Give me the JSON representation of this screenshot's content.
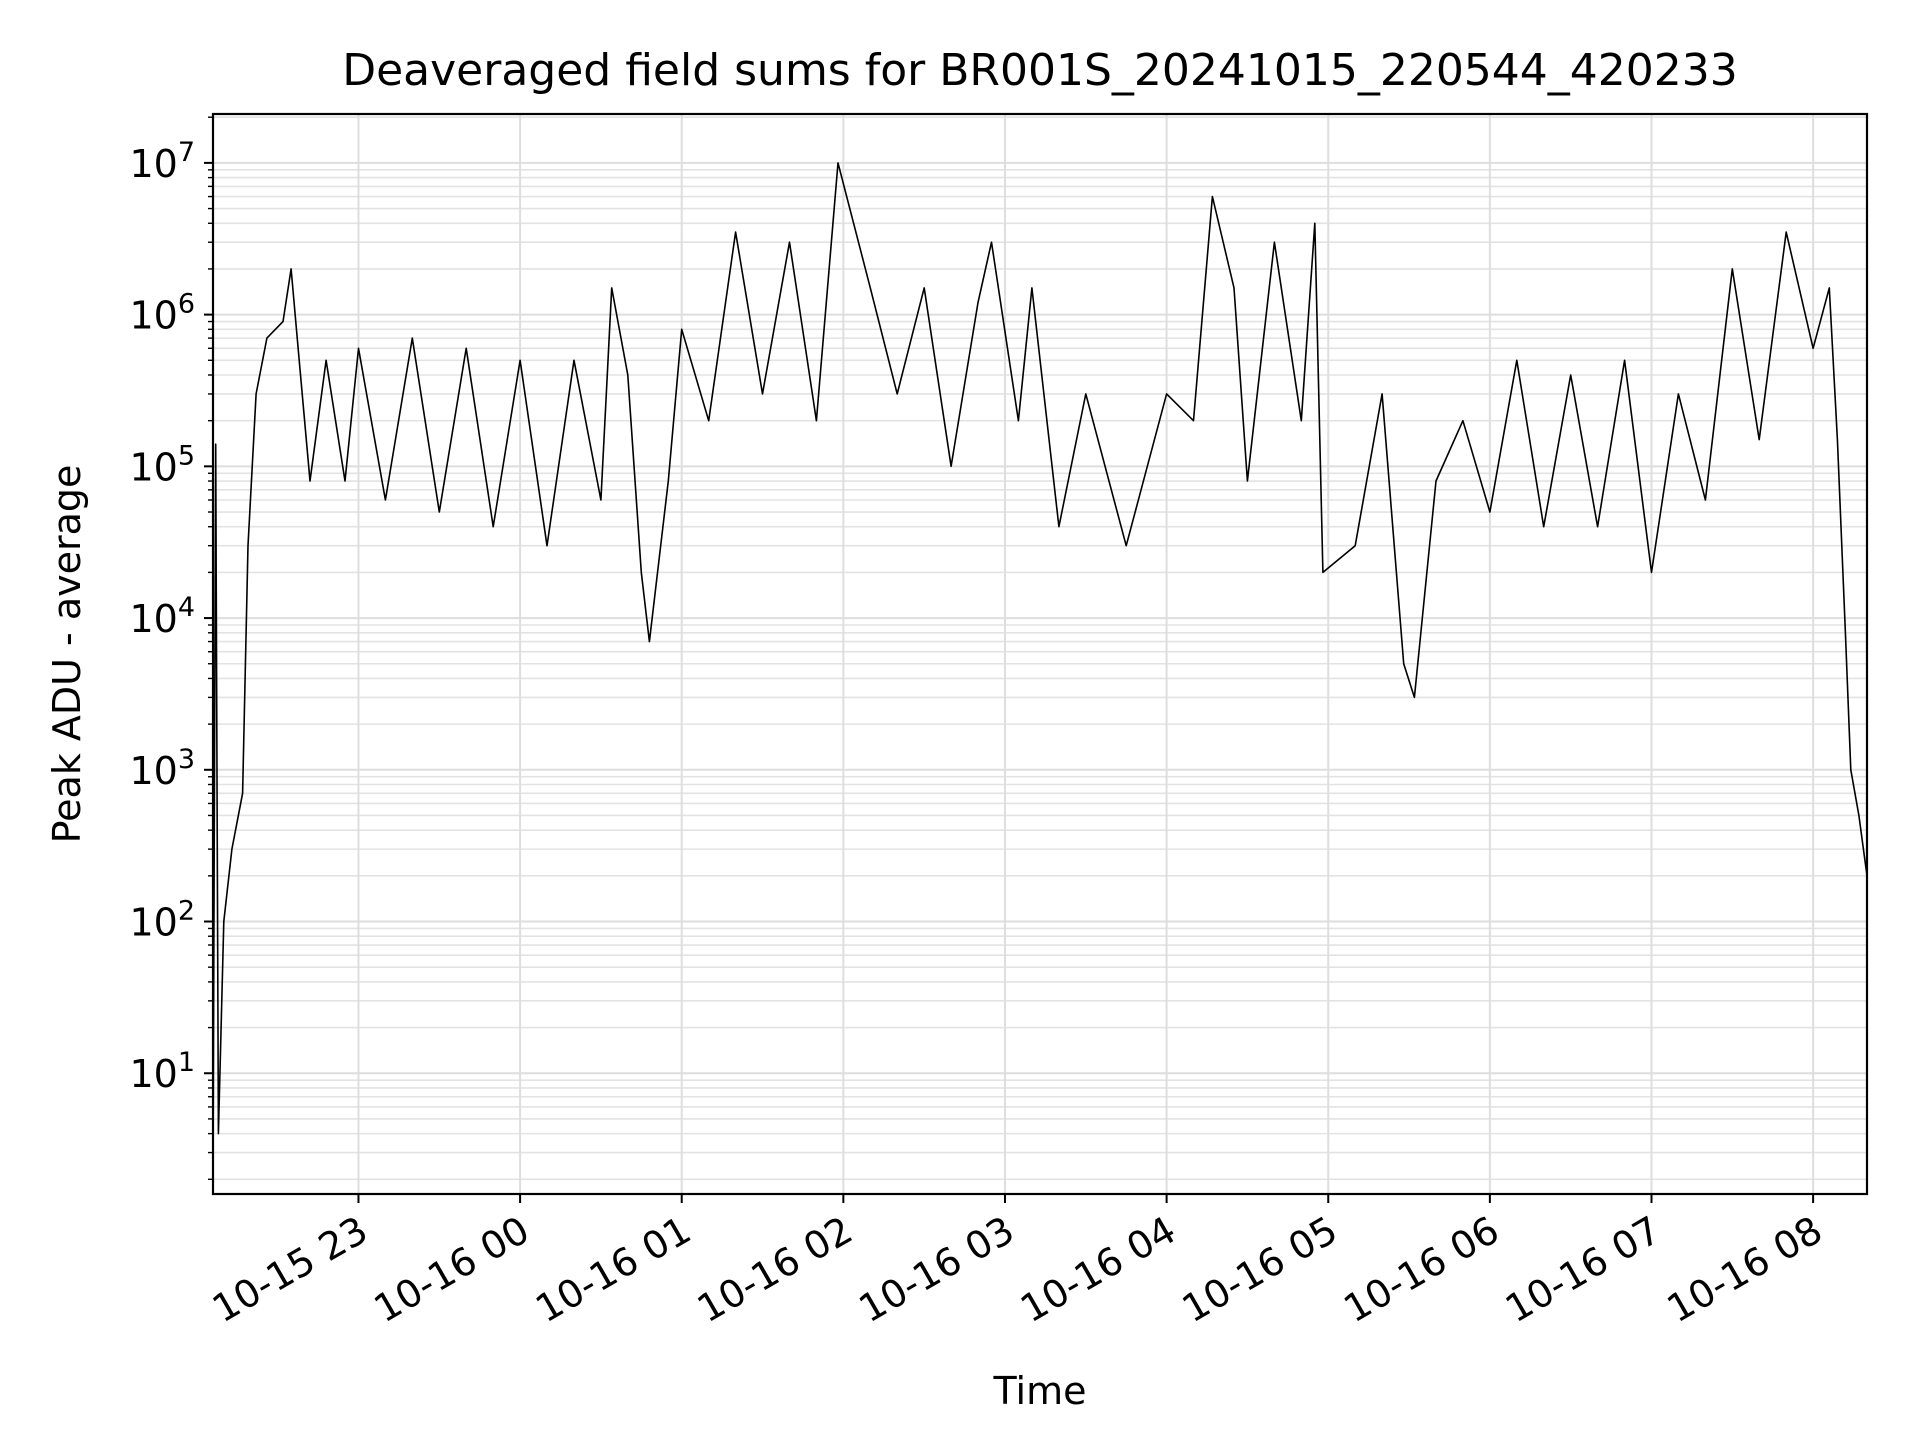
{
  "chart_data": {
    "type": "line",
    "title": "Deaveraged field sums for BR001S_20241015_220544_420233",
    "xlabel": "Time",
    "ylabel": "Peak ADU - average",
    "yscale": "log",
    "ylim": [
      1.6,
      21000000
    ],
    "xlim": [
      "2024-10-15 22:06",
      "2024-10-16 08:20"
    ],
    "grid": "major and minor",
    "legend": "none",
    "line_color": "#000000",
    "x_ticks": [
      {
        "x": "2024-10-15 23:00",
        "label": "10-15 23"
      },
      {
        "x": "2024-10-16 00:00",
        "label": "10-16 00"
      },
      {
        "x": "2024-10-16 01:00",
        "label": "10-16 01"
      },
      {
        "x": "2024-10-16 02:00",
        "label": "10-16 02"
      },
      {
        "x": "2024-10-16 03:00",
        "label": "10-16 03"
      },
      {
        "x": "2024-10-16 04:00",
        "label": "10-16 04"
      },
      {
        "x": "2024-10-16 05:00",
        "label": "10-16 05"
      },
      {
        "x": "2024-10-16 06:00",
        "label": "10-16 06"
      },
      {
        "x": "2024-10-16 07:00",
        "label": "10-16 07"
      },
      {
        "x": "2024-10-16 08:00",
        "label": "10-16 08"
      }
    ],
    "y_ticks": [
      {
        "value": 10,
        "base": "10",
        "exp": "1"
      },
      {
        "value": 100,
        "base": "10",
        "exp": "2"
      },
      {
        "value": 1000,
        "base": "10",
        "exp": "3"
      },
      {
        "value": 10000,
        "base": "10",
        "exp": "4"
      },
      {
        "value": 100000,
        "base": "10",
        "exp": "5"
      },
      {
        "value": 1000000,
        "base": "10",
        "exp": "6"
      },
      {
        "value": 10000000,
        "base": "10",
        "exp": "7"
      }
    ],
    "series": [
      {
        "points": [
          [
            "2024-10-15 22:06",
            2
          ],
          [
            "2024-10-15 22:07",
            140000
          ],
          [
            "2024-10-15 22:08",
            4
          ],
          [
            "2024-10-15 22:10",
            100
          ],
          [
            "2024-10-15 22:13",
            300
          ],
          [
            "2024-10-15 22:17",
            700
          ],
          [
            "2024-10-15 22:19",
            30000
          ],
          [
            "2024-10-15 22:22",
            300000
          ],
          [
            "2024-10-15 22:26",
            700000
          ],
          [
            "2024-10-15 22:32",
            900000
          ],
          [
            "2024-10-15 22:35",
            2000000
          ],
          [
            "2024-10-15 22:38",
            500000
          ],
          [
            "2024-10-15 22:42",
            80000
          ],
          [
            "2024-10-15 22:48",
            500000
          ],
          [
            "2024-10-15 22:55",
            80000
          ],
          [
            "2024-10-15 23:00",
            600000
          ],
          [
            "2024-10-15 23:10",
            60000
          ],
          [
            "2024-10-15 23:20",
            700000
          ],
          [
            "2024-10-15 23:30",
            50000
          ],
          [
            "2024-10-15 23:40",
            600000
          ],
          [
            "2024-10-15 23:50",
            40000
          ],
          [
            "2024-10-16 00:00",
            500000
          ],
          [
            "2024-10-16 00:10",
            30000
          ],
          [
            "2024-10-16 00:20",
            500000
          ],
          [
            "2024-10-16 00:30",
            60000
          ],
          [
            "2024-10-16 00:34",
            1500000
          ],
          [
            "2024-10-16 00:40",
            400000
          ],
          [
            "2024-10-16 00:45",
            20000
          ],
          [
            "2024-10-16 00:48",
            7000
          ],
          [
            "2024-10-16 00:55",
            80000
          ],
          [
            "2024-10-16 01:00",
            800000
          ],
          [
            "2024-10-16 01:10",
            200000
          ],
          [
            "2024-10-16 01:20",
            3500000
          ],
          [
            "2024-10-16 01:30",
            300000
          ],
          [
            "2024-10-16 01:40",
            3000000
          ],
          [
            "2024-10-16 01:50",
            200000
          ],
          [
            "2024-10-16 01:58",
            10000000
          ],
          [
            "2024-10-16 02:10",
            1500000
          ],
          [
            "2024-10-16 02:20",
            300000
          ],
          [
            "2024-10-16 02:30",
            1500000
          ],
          [
            "2024-10-16 02:40",
            100000
          ],
          [
            "2024-10-16 02:50",
            1200000
          ],
          [
            "2024-10-16 02:55",
            3000000
          ],
          [
            "2024-10-16 03:05",
            200000
          ],
          [
            "2024-10-16 03:10",
            1500000
          ],
          [
            "2024-10-16 03:20",
            40000
          ],
          [
            "2024-10-16 03:30",
            300000
          ],
          [
            "2024-10-16 03:45",
            30000
          ],
          [
            "2024-10-16 04:00",
            300000
          ],
          [
            "2024-10-16 04:10",
            200000
          ],
          [
            "2024-10-16 04:17",
            6000000
          ],
          [
            "2024-10-16 04:25",
            1500000
          ],
          [
            "2024-10-16 04:30",
            80000
          ],
          [
            "2024-10-16 04:40",
            3000000
          ],
          [
            "2024-10-16 04:50",
            200000
          ],
          [
            "2024-10-16 04:55",
            4000000
          ],
          [
            "2024-10-16 04:58",
            20000
          ],
          [
            "2024-10-16 05:10",
            30000
          ],
          [
            "2024-10-16 05:20",
            300000
          ],
          [
            "2024-10-16 05:28",
            5000
          ],
          [
            "2024-10-16 05:32",
            3000
          ],
          [
            "2024-10-16 05:40",
            80000
          ],
          [
            "2024-10-16 05:50",
            200000
          ],
          [
            "2024-10-16 06:00",
            50000
          ],
          [
            "2024-10-16 06:10",
            500000
          ],
          [
            "2024-10-16 06:20",
            40000
          ],
          [
            "2024-10-16 06:30",
            400000
          ],
          [
            "2024-10-16 06:40",
            40000
          ],
          [
            "2024-10-16 06:50",
            500000
          ],
          [
            "2024-10-16 07:00",
            20000
          ],
          [
            "2024-10-16 07:10",
            300000
          ],
          [
            "2024-10-16 07:20",
            60000
          ],
          [
            "2024-10-16 07:30",
            2000000
          ],
          [
            "2024-10-16 07:40",
            150000
          ],
          [
            "2024-10-16 07:50",
            3500000
          ],
          [
            "2024-10-16 08:00",
            600000
          ],
          [
            "2024-10-16 08:06",
            1500000
          ],
          [
            "2024-10-16 08:09",
            150000
          ],
          [
            "2024-10-16 08:12",
            8000
          ],
          [
            "2024-10-16 08:14",
            1000
          ],
          [
            "2024-10-16 08:17",
            500
          ],
          [
            "2024-10-16 08:20",
            200
          ]
        ]
      }
    ]
  }
}
